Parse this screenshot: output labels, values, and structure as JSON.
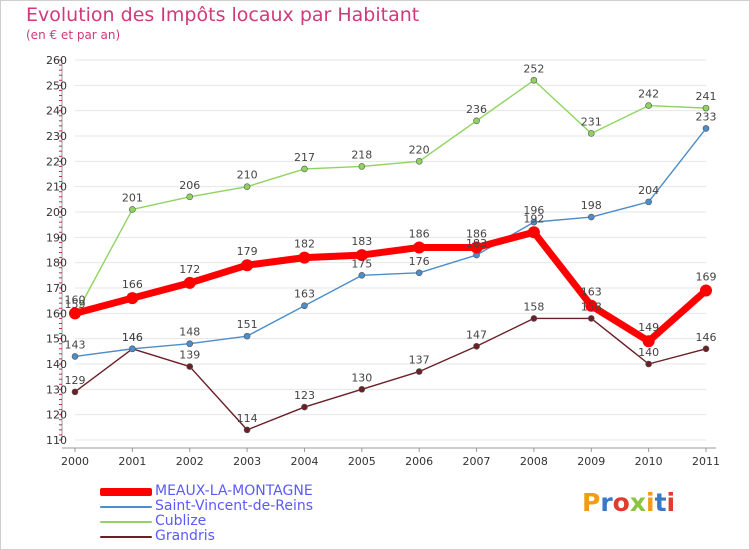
{
  "title": "Evolution des Impôts locaux par Habitant",
  "subtitle": "(en € et par an)",
  "logo": {
    "text": "Proxiti",
    "letters": [
      {
        "ch": "P",
        "color": "#f39c12"
      },
      {
        "ch": "r",
        "color": "#3a78c9"
      },
      {
        "ch": "o",
        "color": "#e23b2e"
      },
      {
        "ch": "x",
        "color": "#8bc53f"
      },
      {
        "ch": "i",
        "color": "#f39c12"
      },
      {
        "ch": "t",
        "color": "#3a78c9"
      },
      {
        "ch": "i",
        "color": "#e23b2e"
      }
    ]
  },
  "chart_data": {
    "type": "line",
    "title": "Evolution des Impôts locaux par Habitant",
    "subtitle": "(en € et par an)",
    "xlabel": "",
    "ylabel": "",
    "x": [
      "2000",
      "2001",
      "2002",
      "2003",
      "2004",
      "2005",
      "2006",
      "2007",
      "2008",
      "2009",
      "2010",
      "2011"
    ],
    "ylim": [
      110,
      260
    ],
    "yticks": [
      110,
      120,
      130,
      140,
      150,
      160,
      170,
      180,
      190,
      200,
      210,
      220,
      230,
      240,
      250,
      260
    ],
    "grid": "horizontal",
    "legend_position": "bottom-left",
    "series": [
      {
        "name": "MEAUX-LA-MONTAGNE",
        "color": "#ff0000",
        "values": [
          160,
          166,
          172,
          179,
          182,
          183,
          186,
          186,
          192,
          163,
          149,
          169
        ],
        "labels": [
          "160",
          "166",
          "172",
          "179",
          "182",
          "183",
          "186",
          "186",
          "192",
          "163",
          "149",
          "169"
        ]
      },
      {
        "name": "Saint-Vincent-de-Reins",
        "color": "#4d8dc9",
        "values": [
          143,
          146,
          148,
          151,
          163,
          175,
          176,
          183,
          196,
          198,
          204,
          233
        ],
        "labels": [
          "143",
          "146",
          "148",
          "151",
          "163",
          "175",
          "176",
          "183",
          "196",
          "198",
          "204",
          "233"
        ]
      },
      {
        "name": "Cublize",
        "color": "#8fd45f",
        "values": [
          159,
          201,
          206,
          210,
          217,
          218,
          220,
          236,
          252,
          231,
          242,
          241
        ],
        "labels": [
          "159",
          "201",
          "206",
          "210",
          "217",
          "218",
          "220",
          "236",
          "252",
          "231",
          "242",
          "241"
        ]
      },
      {
        "name": "Grandris",
        "color": "#6b1f27",
        "values": [
          129,
          146,
          139,
          114,
          123,
          130,
          137,
          147,
          158,
          158,
          140,
          146
        ],
        "labels": [
          "129",
          "146",
          "139",
          "114",
          "123",
          "130",
          "137",
          "147",
          "158",
          "158",
          "140",
          "146"
        ]
      }
    ]
  }
}
